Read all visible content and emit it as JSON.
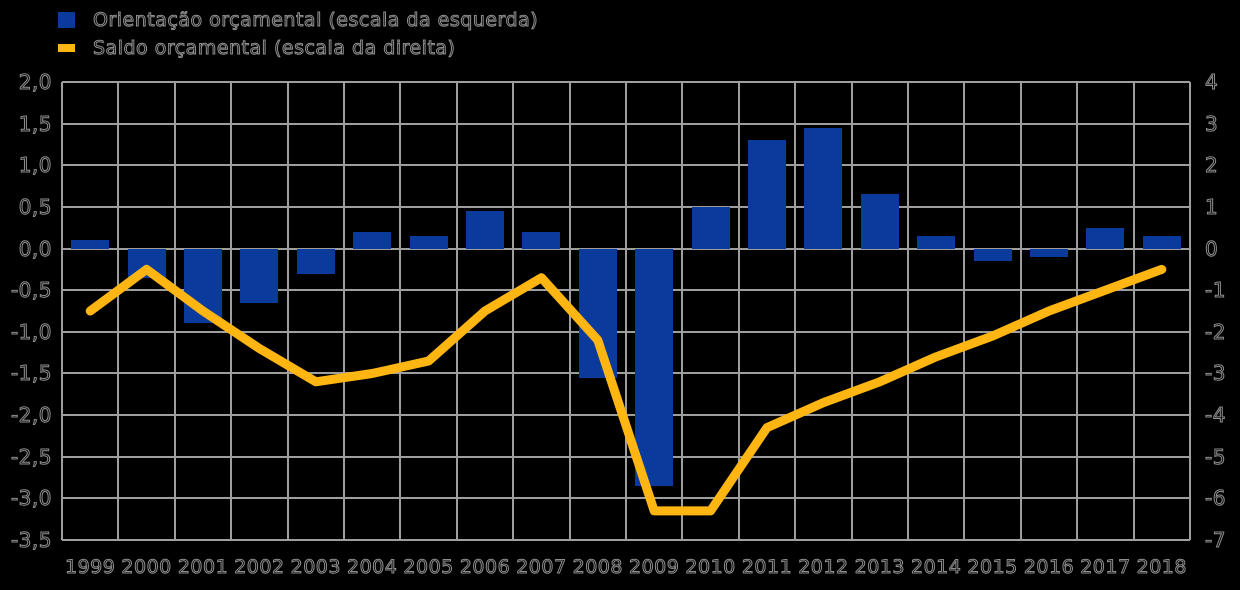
{
  "legend": {
    "items": [
      {
        "label": "Orientação orçamental (escala da esquerda)",
        "swatch": "bar-swatch"
      },
      {
        "label": "Saldo orçamental (escala da direita)",
        "swatch": "line-swatch"
      }
    ]
  },
  "colors": {
    "bar_blue": "#0a3a9b",
    "line_yellow": "#ffb612",
    "grid_gray": "#9e9e9e",
    "background": "#000000",
    "text_outline": "#8f8f8f"
  },
  "chart_data": {
    "type": "combo-bar-line",
    "title": "",
    "categories": [
      "1999",
      "2000",
      "2001",
      "2002",
      "2003",
      "2004",
      "2005",
      "2006",
      "2007",
      "2008",
      "2009",
      "2010",
      "2011",
      "2012",
      "2013",
      "2014",
      "2015",
      "2016",
      "2017",
      "2018"
    ],
    "series": [
      {
        "name": "Orientação orçamental (escala da esquerda)",
        "type": "bar",
        "axis": "left",
        "color": "#0a3a9b",
        "values": [
          0.1,
          -0.35,
          -0.9,
          -0.65,
          -0.3,
          0.2,
          0.15,
          0.45,
          0.2,
          -1.55,
          -2.85,
          0.5,
          1.3,
          1.45,
          0.65,
          0.15,
          -0.15,
          -0.1,
          0.25,
          0.15
        ]
      },
      {
        "name": "Saldo orçamental (escala da direita)",
        "type": "line",
        "axis": "right",
        "color": "#ffb612",
        "values": [
          -1.5,
          -0.5,
          -1.5,
          -2.4,
          -3.2,
          -3.0,
          -2.7,
          -1.5,
          -0.7,
          -2.2,
          -6.3,
          -6.3,
          -4.3,
          -3.7,
          -3.2,
          -2.6,
          -2.1,
          -1.5,
          -1.0,
          -0.5
        ]
      }
    ],
    "left_axis": {
      "max": 2.0,
      "min": -3.5,
      "step": 0.5,
      "tick_labels": [
        "2,0",
        "1,5",
        "1,0",
        "0,5",
        "0,0",
        "-0,5",
        "-1,0",
        "-1,5",
        "-2,0",
        "-2,5",
        "-3,0",
        "-3,5"
      ]
    },
    "right_axis": {
      "max": 4,
      "min": -7,
      "step": 1,
      "tick_labels": [
        "4",
        "3",
        "2",
        "1",
        "0",
        "-1",
        "-2",
        "-3",
        "-4",
        "-5",
        "-6",
        "-7"
      ]
    },
    "grid": true,
    "legend_position": "top-left"
  }
}
